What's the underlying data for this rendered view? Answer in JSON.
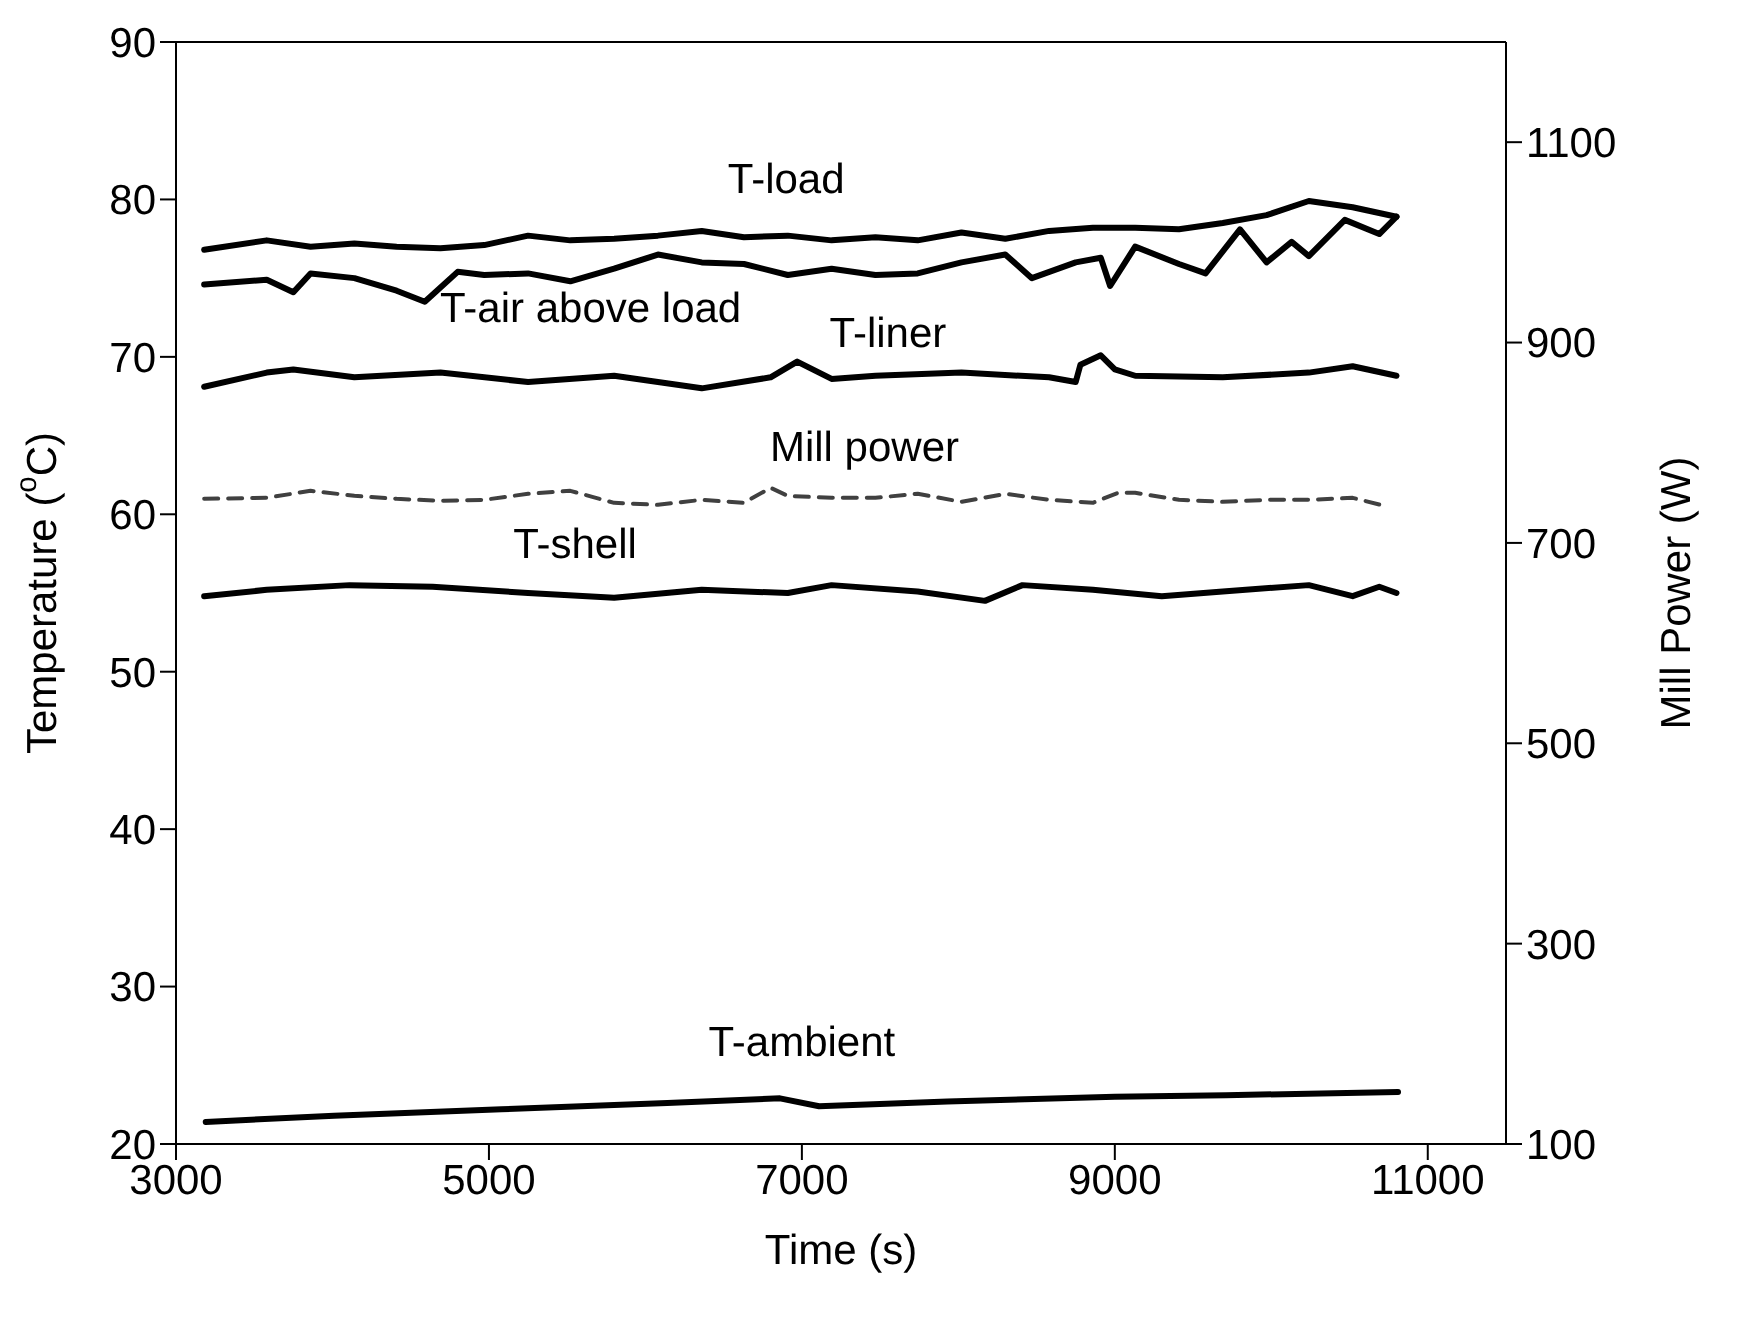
{
  "chart_data": {
    "type": "line",
    "xlabel": "Time (s)",
    "ylabel": "Temperature ($^{o}$C)",
    "y2label": "Mill Power (W)",
    "xlim": [
      3000,
      11500
    ],
    "xticks": [
      3000,
      5000,
      7000,
      9000,
      11000
    ],
    "ylim": [
      20,
      90
    ],
    "yticks": [
      20,
      30,
      40,
      50,
      60,
      70,
      80,
      90
    ],
    "y2lim": [
      100,
      1200
    ],
    "y2ticks": [
      100,
      300,
      500,
      700,
      900,
      1100
    ],
    "grid": false,
    "legend": false,
    "marker": "none",
    "line_style": "solid",
    "series": [
      {
        "name": "T-load",
        "color": "#000000",
        "x": [
          3180,
          3580,
          3860,
          4140,
          4410,
          4690,
          4970,
          5250,
          5520,
          5800,
          6080,
          6360,
          6630,
          6910,
          7190,
          7470,
          7740,
          8020,
          8300,
          8580,
          8860,
          9130,
          9410,
          9690,
          9970,
          10240,
          10520,
          10800
        ],
        "values": [
          76.8,
          77.4,
          77.0,
          77.2,
          77.0,
          76.9,
          77.1,
          77.7,
          77.4,
          77.5,
          77.7,
          78.0,
          77.6,
          77.7,
          77.4,
          77.6,
          77.4,
          77.9,
          77.5,
          78.0,
          78.2,
          78.2,
          78.1,
          78.5,
          79.0,
          79.9,
          79.5,
          78.9
        ]
      },
      {
        "name": "T-air above load",
        "color": "#000000",
        "x": [
          3180,
          3580,
          3750,
          3860,
          4140,
          4410,
          4590,
          4800,
          4970,
          5250,
          5520,
          5800,
          6080,
          6360,
          6630,
          6910,
          7190,
          7470,
          7740,
          8020,
          8300,
          8470,
          8750,
          8910,
          8970,
          9130,
          9410,
          9580,
          9800,
          9970,
          10130,
          10240,
          10470,
          10690,
          10800
        ],
        "values": [
          74.6,
          74.9,
          74.1,
          75.3,
          75.0,
          74.2,
          73.5,
          75.4,
          75.2,
          75.3,
          74.8,
          75.6,
          76.5,
          76.0,
          75.9,
          75.2,
          75.6,
          75.2,
          75.3,
          76.0,
          76.5,
          75.0,
          76.0,
          76.3,
          74.5,
          77.0,
          75.9,
          75.3,
          78.1,
          76.0,
          77.3,
          76.4,
          78.7,
          77.8,
          78.9
        ]
      },
      {
        "name": "T-liner",
        "color": "#000000",
        "x": [
          3180,
          3580,
          3750,
          4140,
          4690,
          5250,
          5800,
          6360,
          6800,
          6970,
          7190,
          7470,
          8020,
          8580,
          8750,
          8780,
          8910,
          9000,
          9130,
          9690,
          10240,
          10520,
          10800
        ],
        "values": [
          68.1,
          69.0,
          69.2,
          68.7,
          69.0,
          68.4,
          68.8,
          68.0,
          68.7,
          69.7,
          68.6,
          68.8,
          69.0,
          68.7,
          68.4,
          69.5,
          70.1,
          69.2,
          68.8,
          68.7,
          69.0,
          69.4,
          68.8
        ]
      },
      {
        "name": "Mill power",
        "color": "#404040",
        "axis": "y2",
        "line_style": "dashed",
        "x": [
          3180,
          3580,
          3860,
          4140,
          4410,
          4690,
          4970,
          5250,
          5520,
          5800,
          6080,
          6360,
          6630,
          6800,
          6910,
          7190,
          7470,
          7740,
          8020,
          8300,
          8580,
          8860,
          9020,
          9130,
          9410,
          9690,
          9970,
          10240,
          10520,
          10750
        ],
        "values": [
          744,
          745,
          752,
          747,
          744,
          742,
          743,
          749,
          752,
          740,
          738,
          743,
          740,
          755,
          747,
          745,
          745,
          749,
          741,
          749,
          743,
          740,
          750,
          750,
          743,
          741,
          743,
          743,
          745,
          736
        ]
      },
      {
        "name": "T-shell",
        "color": "#000000",
        "x": [
          3180,
          3580,
          4110,
          4640,
          5250,
          5800,
          6360,
          6910,
          7190,
          7740,
          8170,
          8410,
          8860,
          9300,
          9690,
          10240,
          10520,
          10690,
          10800
        ],
        "values": [
          54.8,
          55.2,
          55.5,
          55.4,
          55.0,
          54.7,
          55.2,
          55.0,
          55.5,
          55.1,
          54.5,
          55.5,
          55.2,
          54.8,
          55.1,
          55.5,
          54.8,
          55.4,
          55.0
        ]
      },
      {
        "name": "T-ambient",
        "color": "#000000",
        "x": [
          3190,
          4010,
          5080,
          6140,
          6860,
          7110,
          7930,
          9000,
          9710,
          10810
        ],
        "values": [
          21.4,
          21.8,
          22.2,
          22.6,
          22.9,
          22.4,
          22.7,
          23.0,
          23.1,
          23.3
        ]
      }
    ]
  }
}
